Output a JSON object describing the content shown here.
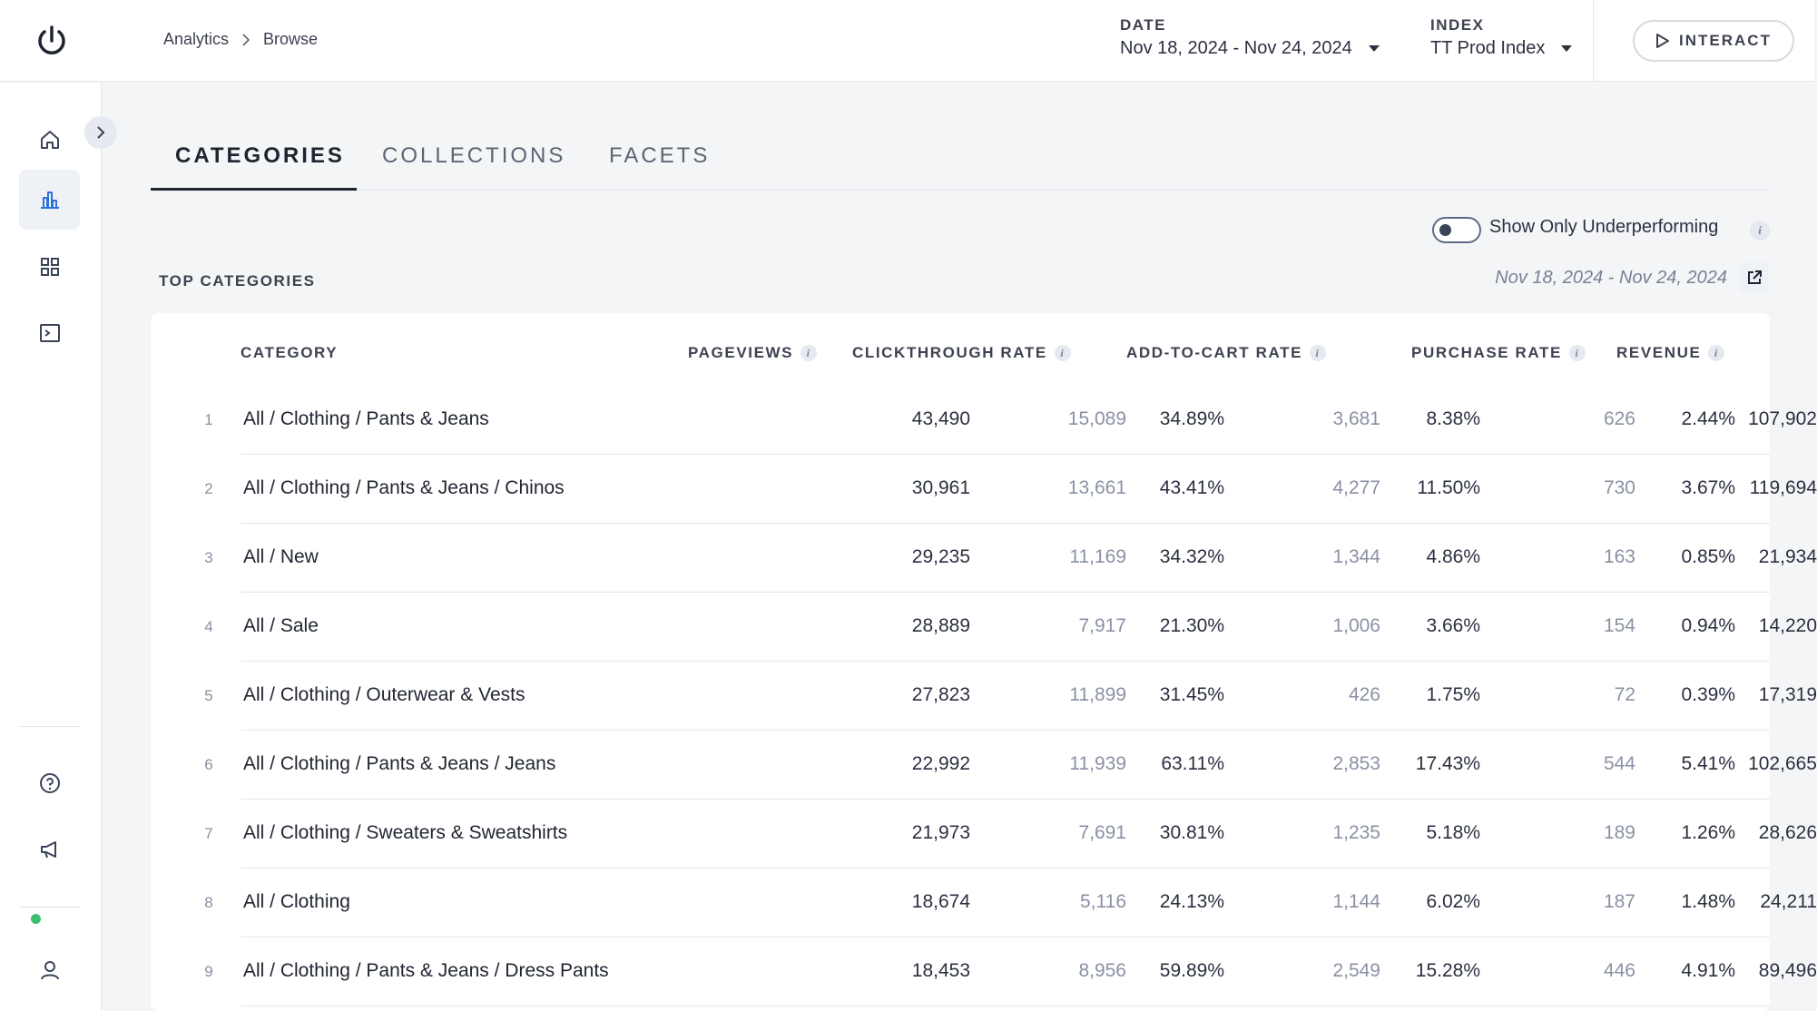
{
  "breadcrumb": {
    "root": "Analytics",
    "current": "Browse"
  },
  "filters": {
    "date_label": "DATE",
    "date_value": "Nov 18, 2024 - Nov 24, 2024",
    "index_label": "INDEX",
    "index_value": "TT Prod Index"
  },
  "interact_label": "INTERACT",
  "tabs": [
    {
      "label": "CATEGORIES",
      "active": true
    },
    {
      "label": "COLLECTIONS",
      "active": false
    },
    {
      "label": "FACETS",
      "active": false
    }
  ],
  "toggle": {
    "label": "Show Only Underperforming",
    "on": false
  },
  "section": {
    "title": "TOP CATEGORIES",
    "range": "Nov 18, 2024 - Nov 24, 2024"
  },
  "info_glyph": "i",
  "table": {
    "headers": {
      "category": "CATEGORY",
      "pageviews": "PAGEVIEWS",
      "clickthrough": "CLICKTHROUGH RATE",
      "add_to_cart": "ADD-TO-CART RATE",
      "purchase": "PURCHASE RATE",
      "revenue": "REVENUE"
    },
    "rows": [
      {
        "num": "1",
        "category": "All / Clothing / Pants & Jeans",
        "pageviews": "43,490",
        "clicks": "15,089",
        "ctr": "34.89%",
        "atc": "3,681",
        "atc_rate": "8.38%",
        "purchases": "626",
        "purchase_rate": "2.44%",
        "revenue": "107,902"
      },
      {
        "num": "2",
        "category": "All / Clothing / Pants & Jeans / Chinos",
        "pageviews": "30,961",
        "clicks": "13,661",
        "ctr": "43.41%",
        "atc": "4,277",
        "atc_rate": "11.50%",
        "purchases": "730",
        "purchase_rate": "3.67%",
        "revenue": "119,694"
      },
      {
        "num": "3",
        "category": "All / New",
        "pageviews": "29,235",
        "clicks": "11,169",
        "ctr": "34.32%",
        "atc": "1,344",
        "atc_rate": "4.86%",
        "purchases": "163",
        "purchase_rate": "0.85%",
        "revenue": "21,934"
      },
      {
        "num": "4",
        "category": "All / Sale",
        "pageviews": "28,889",
        "clicks": "7,917",
        "ctr": "21.30%",
        "atc": "1,006",
        "atc_rate": "3.66%",
        "purchases": "154",
        "purchase_rate": "0.94%",
        "revenue": "14,220"
      },
      {
        "num": "5",
        "category": "All / Clothing / Outerwear & Vests",
        "pageviews": "27,823",
        "clicks": "11,899",
        "ctr": "31.45%",
        "atc": "426",
        "atc_rate": "1.75%",
        "purchases": "72",
        "purchase_rate": "0.39%",
        "revenue": "17,319"
      },
      {
        "num": "6",
        "category": "All / Clothing / Pants & Jeans / Jeans",
        "pageviews": "22,992",
        "clicks": "11,939",
        "ctr": "63.11%",
        "atc": "2,853",
        "atc_rate": "17.43%",
        "purchases": "544",
        "purchase_rate": "5.41%",
        "revenue": "102,665"
      },
      {
        "num": "7",
        "category": "All / Clothing / Sweaters & Sweatshirts",
        "pageviews": "21,973",
        "clicks": "7,691",
        "ctr": "30.81%",
        "atc": "1,235",
        "atc_rate": "5.18%",
        "purchases": "189",
        "purchase_rate": "1.26%",
        "revenue": "28,626"
      },
      {
        "num": "8",
        "category": "All / Clothing",
        "pageviews": "18,674",
        "clicks": "5,116",
        "ctr": "24.13%",
        "atc": "1,144",
        "atc_rate": "6.02%",
        "purchases": "187",
        "purchase_rate": "1.48%",
        "revenue": "24,211"
      },
      {
        "num": "9",
        "category": "All / Clothing / Pants & Jeans / Dress Pants",
        "pageviews": "18,453",
        "clicks": "8,956",
        "ctr": "59.89%",
        "atc": "2,549",
        "atc_rate": "15.28%",
        "purchases": "446",
        "purchase_rate": "4.91%",
        "revenue": "89,496"
      }
    ]
  },
  "sidebar": {
    "items": [
      {
        "icon": "home-icon"
      },
      {
        "icon": "bar-chart-icon",
        "active": true
      },
      {
        "icon": "grid-icon"
      },
      {
        "icon": "terminal-icon"
      },
      {
        "icon": "help-icon"
      },
      {
        "icon": "megaphone-icon",
        "notification": true
      },
      {
        "icon": "user-icon"
      }
    ]
  },
  "colors": {
    "accent": "#1f2430",
    "notification": "#3cbf6e",
    "muted": "#8a91a3"
  }
}
